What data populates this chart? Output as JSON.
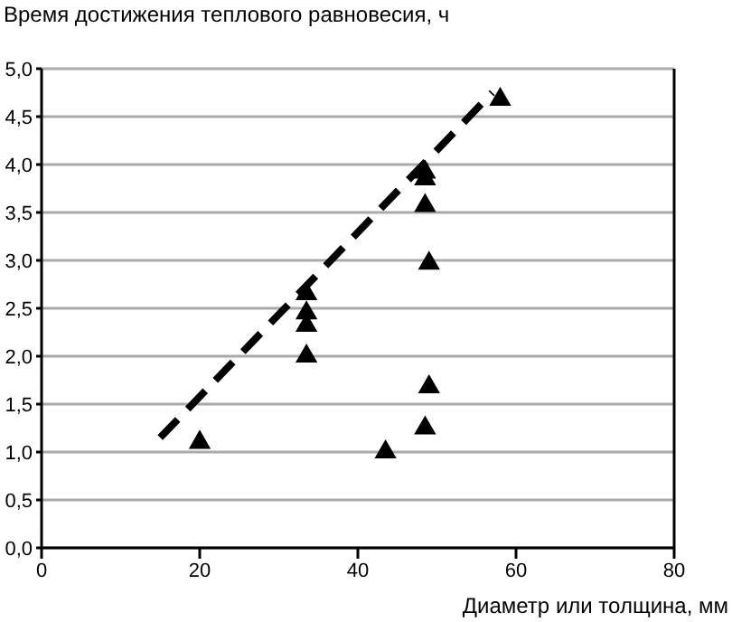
{
  "chart_data": {
    "type": "scatter",
    "ylabel": "Время достижения теплового равновесия, ч",
    "xlabel": "Диаметр или толщина, мм",
    "xlim": [
      0,
      80
    ],
    "xticks": [
      0,
      20,
      40,
      60,
      80
    ],
    "ylim": [
      0,
      5
    ],
    "yticks": [
      {
        "value": 0,
        "label": "0,0"
      },
      {
        "value": 0.5,
        "label": "0,5"
      },
      {
        "value": 1,
        "label": "1,0"
      },
      {
        "value": 1.5,
        "label": "1,5"
      },
      {
        "value": 2,
        "label": "2,0"
      },
      {
        "value": 2.5,
        "label": "2,5"
      },
      {
        "value": 3,
        "label": "3,0"
      },
      {
        "value": 3.5,
        "label": "3,5"
      },
      {
        "value": 4,
        "label": "4,0"
      },
      {
        "value": 4.5,
        "label": "4,5"
      },
      {
        "value": 5,
        "label": "5,0"
      }
    ],
    "grid": "y",
    "marker": "triangle",
    "series": [
      {
        "color": "#000000",
        "x": [
          20,
          33.5,
          33.5,
          33.5,
          33.5,
          43.5,
          48.5,
          49,
          48.5,
          48.5,
          48.5,
          49,
          58
        ],
        "values": [
          1.1,
          2.65,
          2.45,
          2.32,
          2.0,
          1.0,
          1.25,
          1.68,
          3.92,
          3.85,
          3.57,
          2.97,
          4.68
        ]
      },
      {
        "type": "line",
        "color": "#000000",
        "line_style": "dashed",
        "marker": "none",
        "x": [
          15,
          57
        ],
        "values": [
          1.15,
          4.75
        ]
      }
    ]
  }
}
